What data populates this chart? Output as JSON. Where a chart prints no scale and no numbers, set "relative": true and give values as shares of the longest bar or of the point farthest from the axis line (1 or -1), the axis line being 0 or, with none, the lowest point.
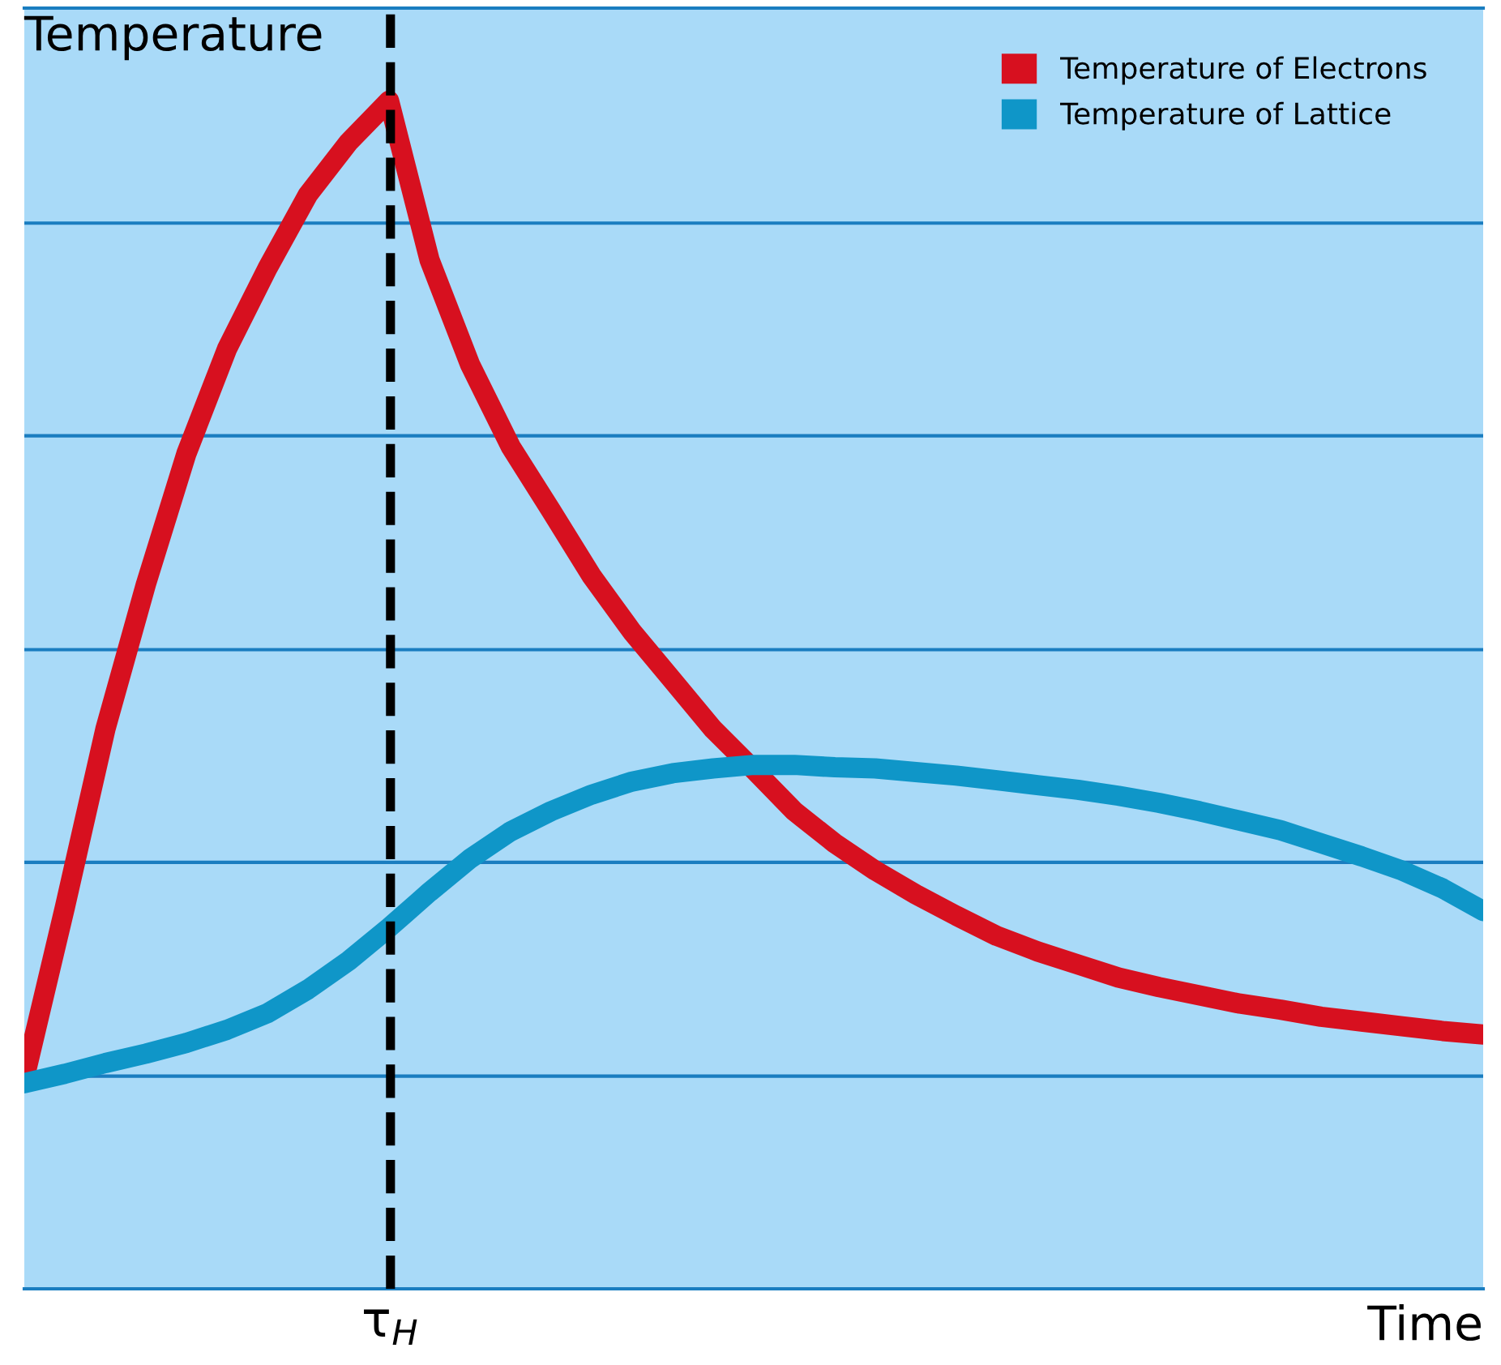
{
  "chart_data": {
    "type": "line",
    "relative": true,
    "ylabel": "Temperature",
    "xlabel": "Time",
    "categories": [
      null,
      null,
      null,
      null,
      null,
      null,
      null,
      null,
      null,
      null,
      null,
      null,
      null,
      null,
      null,
      null,
      null,
      null,
      null,
      null,
      null,
      null,
      null,
      null,
      null,
      null,
      null,
      null,
      null,
      null,
      null,
      null,
      null,
      null,
      null,
      null,
      null
    ],
    "annotations": [
      "τ$_{H}$"
    ],
    "series": [
      {
        "name": "Temperature of Electrons",
        "color": "#d7101f",
        "values": [
          0.177,
          0.321,
          0.471,
          0.593,
          0.703,
          0.791,
          0.859,
          0.921,
          0.965,
          1,
          0.866,
          0.778,
          0.709,
          0.655,
          0.6,
          0.553,
          0.512,
          0.471,
          0.437,
          0.402,
          0.375,
          0.352,
          0.332,
          0.314,
          0.297,
          0.284,
          0.273,
          0.262,
          0.254,
          0.247,
          0.24,
          0.235,
          0.229,
          0.225,
          0.221,
          0.217,
          0.214
        ]
      },
      {
        "name": "Temperature of Lattice",
        "color": "#0f96c8",
        "values": [
          0.173,
          0.181,
          0.19,
          0.198,
          0.207,
          0.218,
          0.232,
          0.252,
          0.276,
          0.304,
          0.334,
          0.362,
          0.385,
          0.402,
          0.416,
          0.427,
          0.434,
          0.438,
          0.441,
          0.441,
          0.439,
          0.438,
          0.435,
          0.432,
          0.428,
          0.424,
          0.42,
          0.415,
          0.409,
          0.402,
          0.394,
          0.386,
          0.375,
          0.364,
          0.352,
          0.337,
          0.318
        ]
      }
    ],
    "ref_lines": [
      {
        "axis": "y",
        "value": 0.179,
        "color": "#1a7dc0",
        "line_style": "solid"
      },
      {
        "axis": "y",
        "value": 0.359,
        "color": "#1a7dc0",
        "line_style": "solid"
      },
      {
        "axis": "y",
        "value": 0.538,
        "color": "#1a7dc0",
        "line_style": "solid"
      },
      {
        "axis": "y",
        "value": 0.718,
        "color": "#1a7dc0",
        "line_style": "solid"
      },
      {
        "axis": "y",
        "value": 0.897,
        "color": "#1a7dc0",
        "line_style": "solid"
      }
    ],
    "legend": "top right",
    "line_style": "solid"
  }
}
